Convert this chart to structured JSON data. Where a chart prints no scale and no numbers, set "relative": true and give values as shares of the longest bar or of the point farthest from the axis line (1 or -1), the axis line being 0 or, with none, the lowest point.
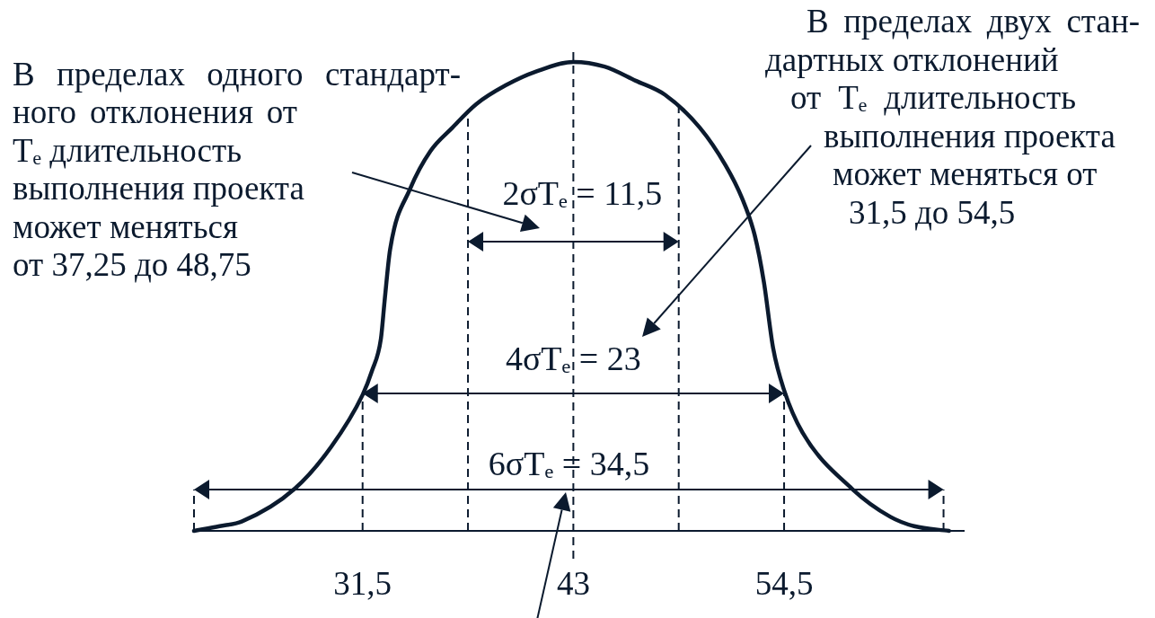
{
  "chart_data": {
    "type": "line",
    "relative": true,
    "x": [
      22.3,
      23.7,
      24.9,
      27.8,
      29.8,
      31.5,
      32.0,
      32.5,
      32.7,
      33.0,
      34.1,
      35.2,
      36.4,
      37.7,
      39.3,
      41.0,
      43,
      44.7,
      46.4,
      48.0,
      49.9,
      51.3,
      52.2,
      52.9,
      53.4,
      53.9,
      54.5,
      55.5,
      58.2,
      60.3,
      61.6,
      63.5
    ],
    "series": [
      {
        "color": "#0b1a2e",
        "values": [
          0,
          0.01,
          0.02,
          0.09,
          0.18,
          0.29,
          0.34,
          0.41,
          0.49,
          0.6,
          0.73,
          0.81,
          0.86,
          0.91,
          0.95,
          0.98,
          1,
          0.99,
          0.96,
          0.93,
          0.86,
          0.78,
          0.71,
          0.63,
          0.53,
          0.39,
          0.3,
          0.21,
          0.09,
          0.03,
          0.01,
          0
        ]
      }
    ],
    "xlim": [
      22.3,
      64.3
    ],
    "xticks": [
      {
        "value": 31.5,
        "label": "31,5"
      },
      43,
      {
        "value": 54.5,
        "label": "54,5"
      }
    ],
    "ref_lines": [
      {
        "axis": "x",
        "value": 22.3,
        "line_style": "dashed"
      },
      {
        "axis": "x",
        "value": 31.5,
        "line_style": "dashed"
      },
      {
        "axis": "x",
        "value": 37.25,
        "line_style": "dashed"
      },
      {
        "axis": "x",
        "value": 43,
        "line_style": "dashed"
      },
      {
        "axis": "x",
        "value": 48.75,
        "line_style": "dashed"
      },
      {
        "axis": "x",
        "value": 54.5,
        "line_style": "dashed"
      },
      {
        "axis": "x",
        "value": 63.2,
        "line_style": "dashed"
      }
    ],
    "annotations": [
      "В пределах одного стандарт-\nного отклонения от\nTₑ длительность\nвыполнения проекта\nможет меняться\nот 37,25 до 48,75",
      "В пределах двух стан-\nдартных отклонений\nот Tₑ длительность\nвыполнения проекта\nможет меняться от\n31,5 до 54,5",
      "2σTₑ = 11,5",
      "4σTₑ = 23",
      "6σTₑ = 34,5"
    ]
  }
}
